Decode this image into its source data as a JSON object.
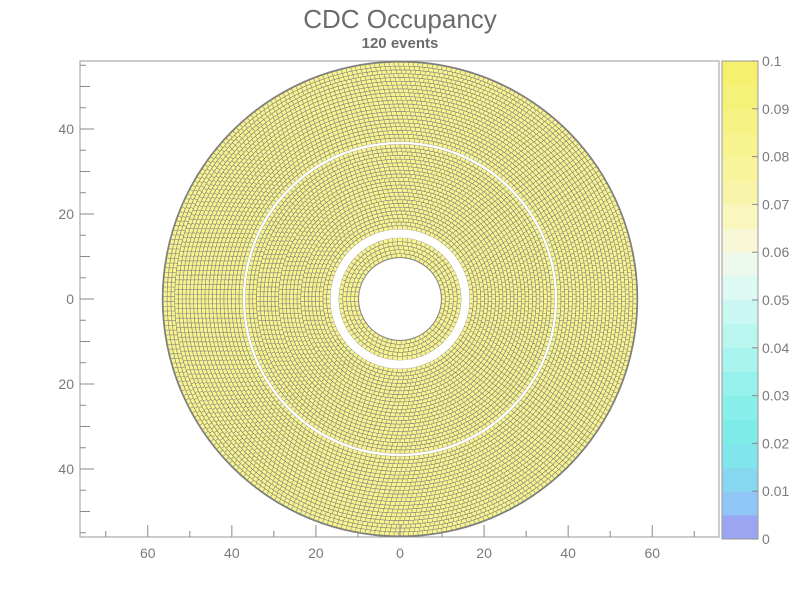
{
  "chart_data": {
    "type": "heatmap",
    "title": "CDC Occupancy",
    "subtitle": "120 events",
    "xlabel": "",
    "ylabel": "",
    "xlim": [
      -76,
      76
    ],
    "ylim": [
      -56,
      56
    ],
    "x_tick_labels": [
      {
        "value": -60,
        "label": "60"
      },
      {
        "value": -40,
        "label": "40"
      },
      {
        "value": -20,
        "label": "20"
      },
      {
        "value": 0,
        "label": "0"
      },
      {
        "value": 20,
        "label": "20"
      },
      {
        "value": 40,
        "label": "40"
      },
      {
        "value": 60,
        "label": "60"
      }
    ],
    "y_tick_labels": [
      {
        "value": 40,
        "label": "40"
      },
      {
        "value": 20,
        "label": "20"
      },
      {
        "value": 0,
        "label": "0"
      },
      {
        "value": -20,
        "label": "20"
      },
      {
        "value": -40,
        "label": "40"
      }
    ],
    "detector": {
      "inner_radius": 9.8,
      "outer_radius": 56,
      "gaps": [
        {
          "inner": 14.5,
          "outer": 16.5
        },
        {
          "inner": 36.6,
          "outer": 37.2
        }
      ],
      "cell_value": 0.09,
      "cell_color": "#f8f48e",
      "outline_color": "#7f7f7f"
    },
    "colorbar": {
      "range": [
        0,
        0.1
      ],
      "labels": [
        "0.1",
        "0.09",
        "0.08",
        "0.07",
        "0.06",
        "0.05",
        "0.04",
        "0.03",
        "0.02",
        "0.01",
        "0"
      ],
      "colors": [
        "#9aa6f2",
        "#8fc6f5",
        "#86d8f0",
        "#80e6ec",
        "#7eebe8",
        "#88eeea",
        "#96f0ec",
        "#a8f3ee",
        "#baf6f0",
        "#cbf7f2",
        "#dcf9f4",
        "#eef9ee",
        "#f8f8d8",
        "#f9f6be",
        "#f8f5aa",
        "#f8f49c",
        "#f7f38f",
        "#f7f284",
        "#f6f179",
        "#f6f06e"
      ]
    },
    "grid": false,
    "legend": "colorbar-right"
  }
}
